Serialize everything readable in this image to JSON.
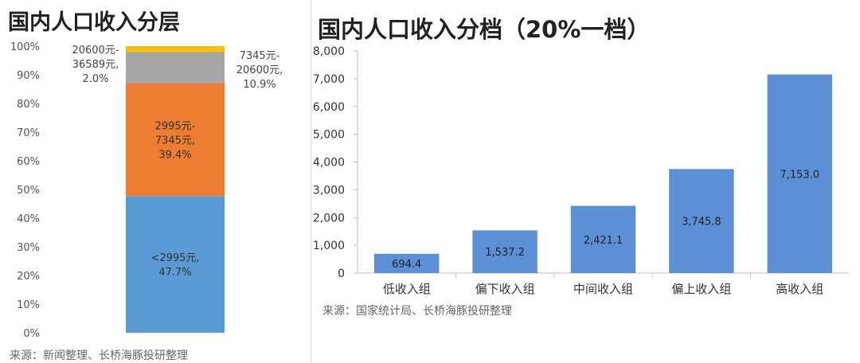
{
  "left": {
    "title": "国内人口收入分层",
    "source": "来源：新闻整理、长桥海豚投研整理"
  },
  "right": {
    "title": "国内人口收入分档（20%一档）",
    "source": "来源：国家统计局、长桥海豚投研整理"
  },
  "chart_data": [
    {
      "type": "bar",
      "stacked": true,
      "title": "国内人口收入分层",
      "ylim": [
        0,
        100
      ],
      "y_ticks": [
        "0%",
        "10%",
        "20%",
        "30%",
        "40%",
        "50%",
        "60%",
        "70%",
        "80%",
        "90%",
        "100%"
      ],
      "segments": [
        {
          "label_lines": [
            "<2995元,",
            "47.7%"
          ],
          "value": 47.7,
          "color": "#5b9bd5"
        },
        {
          "label_lines": [
            "2995元-",
            "7345元,",
            "39.4%"
          ],
          "value": 39.4,
          "color": "#ed7d31"
        },
        {
          "label_lines": [
            "7345元-",
            "20600元,",
            "10.9%"
          ],
          "value": 10.9,
          "color": "#a5a5a5"
        },
        {
          "label_lines": [
            "20600元-",
            "36589元,",
            "2.0%"
          ],
          "value": 2.0,
          "color": "#ffc000"
        }
      ],
      "grid": false,
      "legend": "none"
    },
    {
      "type": "bar",
      "title": "国内人口收入分档（20%一档）",
      "categories": [
        "低收入组",
        "偏下收入组",
        "中间收入组",
        "偏上收入组",
        "高收入组"
      ],
      "values": [
        694.4,
        1537.2,
        2421.1,
        3745.8,
        7153.0
      ],
      "data_labels": [
        "694.4",
        "1,537.2",
        "2,421.1",
        "3,745.8",
        "7,153.0"
      ],
      "ylim": [
        0,
        8000
      ],
      "y_ticks": [
        "0",
        "1,000",
        "2,000",
        "3,000",
        "4,000",
        "5,000",
        "6,000",
        "7,000",
        "8,000"
      ],
      "color": "#5b8fd6",
      "grid": false,
      "legend": "none"
    }
  ]
}
